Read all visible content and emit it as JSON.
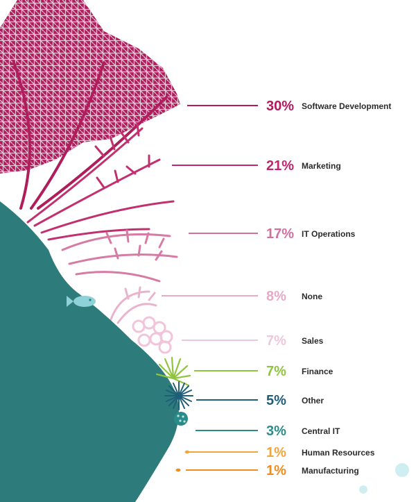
{
  "chart_data": {
    "type": "bar",
    "categories": [
      "Software Development",
      "Marketing",
      "IT Operations",
      "None",
      "Sales",
      "Finance",
      "Other",
      "Central IT",
      "Human Resources",
      "Manufacturing"
    ],
    "values": [
      30,
      21,
      17,
      8,
      7,
      7,
      5,
      3,
      1,
      1
    ],
    "value_labels": [
      "30%",
      "21%",
      "17%",
      "8%",
      "7%",
      "7%",
      "5%",
      "3%",
      "1%",
      "1%"
    ],
    "colors": [
      "#b5195c",
      "#c1266b",
      "#d2709d",
      "#e7a9c6",
      "#efc7db",
      "#8fc43f",
      "#1f5e78",
      "#2a8c8a",
      "#f2a63a",
      "#f08c1e"
    ],
    "decoration": [
      "coral-fan",
      "fish",
      "anemone",
      "sea-urchin",
      "sponge",
      "teal-rock",
      "bubbles"
    ]
  }
}
